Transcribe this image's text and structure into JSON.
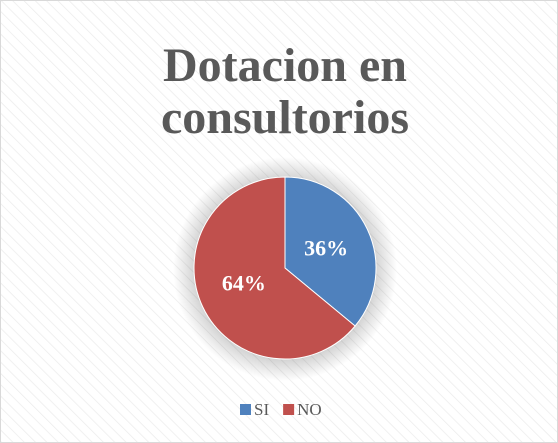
{
  "chart_data": {
    "type": "pie",
    "title": "Dotacion en consultorios",
    "categories": [
      "SI",
      "NO"
    ],
    "values": [
      36,
      64
    ],
    "value_labels": [
      "36%",
      "64%"
    ],
    "colors": [
      "#4f81bd",
      "#c0504d"
    ],
    "legend": "bottom"
  }
}
